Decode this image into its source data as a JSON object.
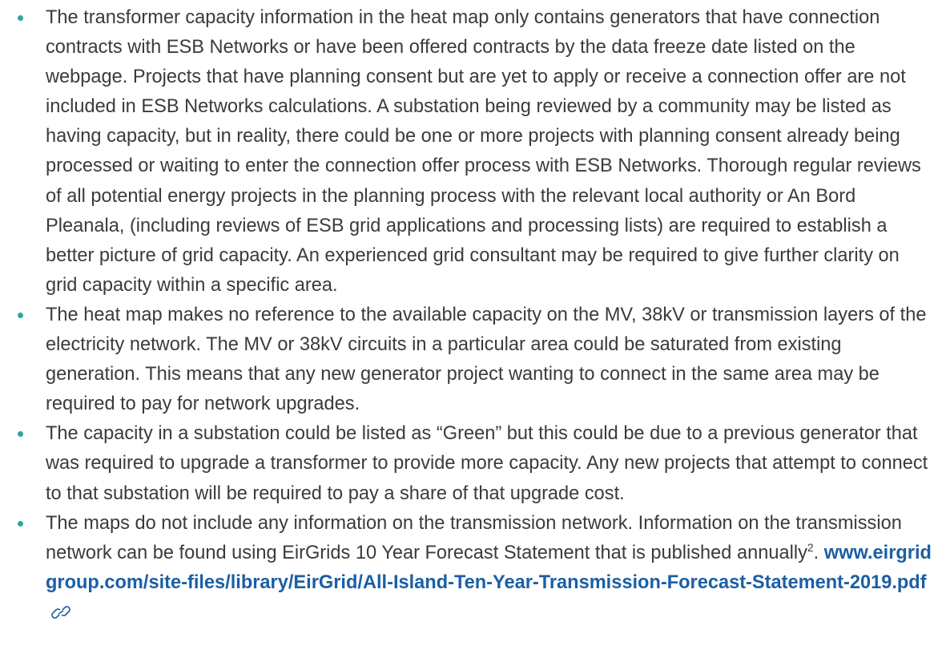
{
  "bullets": [
    {
      "text": "The transformer capacity information in the heat map only contains generators that have connection contracts with ESB Networks or have been offered contracts by the data freeze date listed on the webpage. Projects that have planning consent but are yet to apply or receive a connection offer are not included in ESB Networks calculations. A substation being reviewed by a community may be listed as having capacity, but in reality, there could be one or more projects with planning consent already being processed or waiting to enter the connection offer process with ESB Networks. Thorough regular reviews of all potential energy projects in the planning process with the relevant local authority or An Bord Pleanala, (including reviews of ESB grid applications and processing lists) are required to establish a better picture of grid capacity. An experienced grid consultant may be required to give further clarity on grid capacity within a specific area."
    },
    {
      "text": "The heat map makes no reference to the available capacity on the MV, 38kV or transmission layers of the electricity network. The MV or 38kV circuits in a particular area could be saturated from existing generation. This means that any new generator project wanting to connect in the same area may be required to pay for network upgrades."
    },
    {
      "text": "The capacity in a substation could be listed as “Green” but this could be due to a previous generator that was required to upgrade a transformer to provide more capacity. Any new projects that attempt to connect to that substation will be required to pay a share of that upgrade cost."
    },
    {
      "text": "The maps do not include any information on the transmission network. Information on the transmission network can be found using EirGrids 10 Year Forecast Statement that is published annually",
      "footnote": "2",
      "punctuation": ".",
      "link": "www.eirgridgroup.com/site-files/library/EirGrid/All-Island-Ten-Year-Transmission-Forecast-Statement-2019.pdf"
    }
  ]
}
